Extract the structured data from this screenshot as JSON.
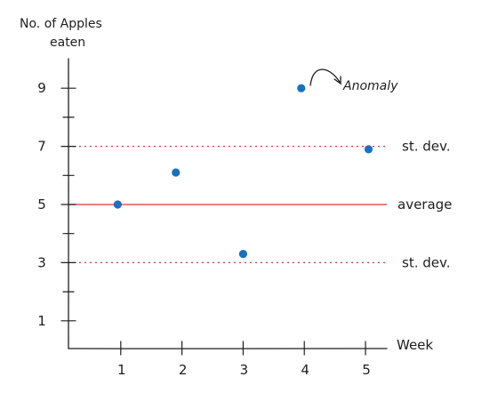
{
  "chart_data": {
    "type": "scatter",
    "ylabel_lines": [
      "No. of Apples",
      "eaten"
    ],
    "xlabel": "Week",
    "x_ticks": [
      1,
      2,
      3,
      4,
      5
    ],
    "y_ticks": [
      1,
      3,
      5,
      7,
      9
    ],
    "xlim": [
      0,
      5.3
    ],
    "ylim": [
      0,
      10
    ],
    "points": [
      {
        "x": 0.95,
        "y": 5
      },
      {
        "x": 1.9,
        "y": 6.1
      },
      {
        "x": 3.0,
        "y": 3.3
      },
      {
        "x": 3.95,
        "y": 9.0
      },
      {
        "x": 5.05,
        "y": 6.9
      }
    ],
    "reference_lines": [
      {
        "y": 7,
        "label": "st. dev.",
        "style": "dotted",
        "color": "#e03131"
      },
      {
        "y": 5,
        "label": "average",
        "style": "solid",
        "color": "#e03131"
      },
      {
        "y": 3,
        "label": "st. dev.",
        "style": "dotted",
        "color": "#e03131"
      }
    ],
    "annotation": {
      "text": "Anomaly",
      "point_index": 3
    },
    "point_color": "#1971c2",
    "grid": false,
    "legend": "none"
  }
}
